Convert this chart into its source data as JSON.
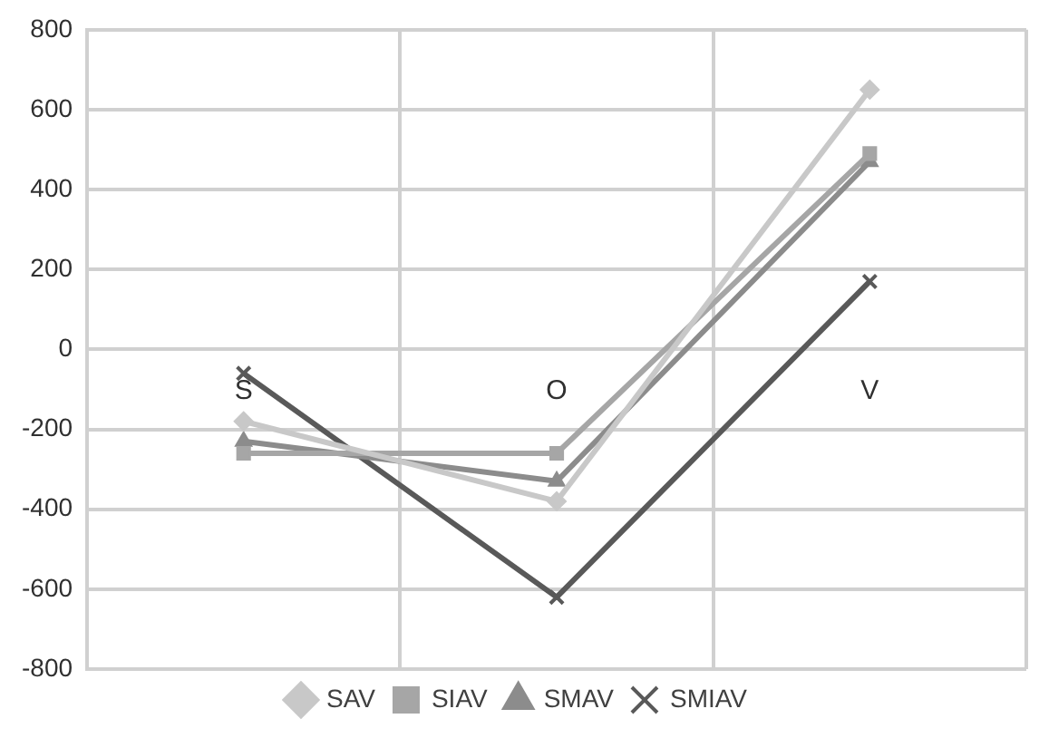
{
  "chart_data": {
    "type": "line",
    "categories": [
      "S",
      "O",
      "V"
    ],
    "series": [
      {
        "name": "SAV",
        "color": "#c8c8c8",
        "marker": "diamond",
        "values": [
          -180,
          -380,
          650
        ]
      },
      {
        "name": "SIAV",
        "color": "#a6a6a6",
        "marker": "square",
        "values": [
          -260,
          -260,
          490
        ]
      },
      {
        "name": "SMAV",
        "color": "#8c8c8c",
        "marker": "triangle",
        "values": [
          -230,
          -330,
          470
        ]
      },
      {
        "name": "SMIAV",
        "color": "#595959",
        "marker": "cross",
        "values": [
          -60,
          -620,
          170
        ]
      }
    ],
    "ylim": [
      -800,
      800
    ],
    "yticks": [
      -800,
      -600,
      -400,
      -200,
      0,
      200,
      400,
      600,
      800
    ],
    "grid": true,
    "legend": "bottom",
    "line_style": "solid"
  }
}
